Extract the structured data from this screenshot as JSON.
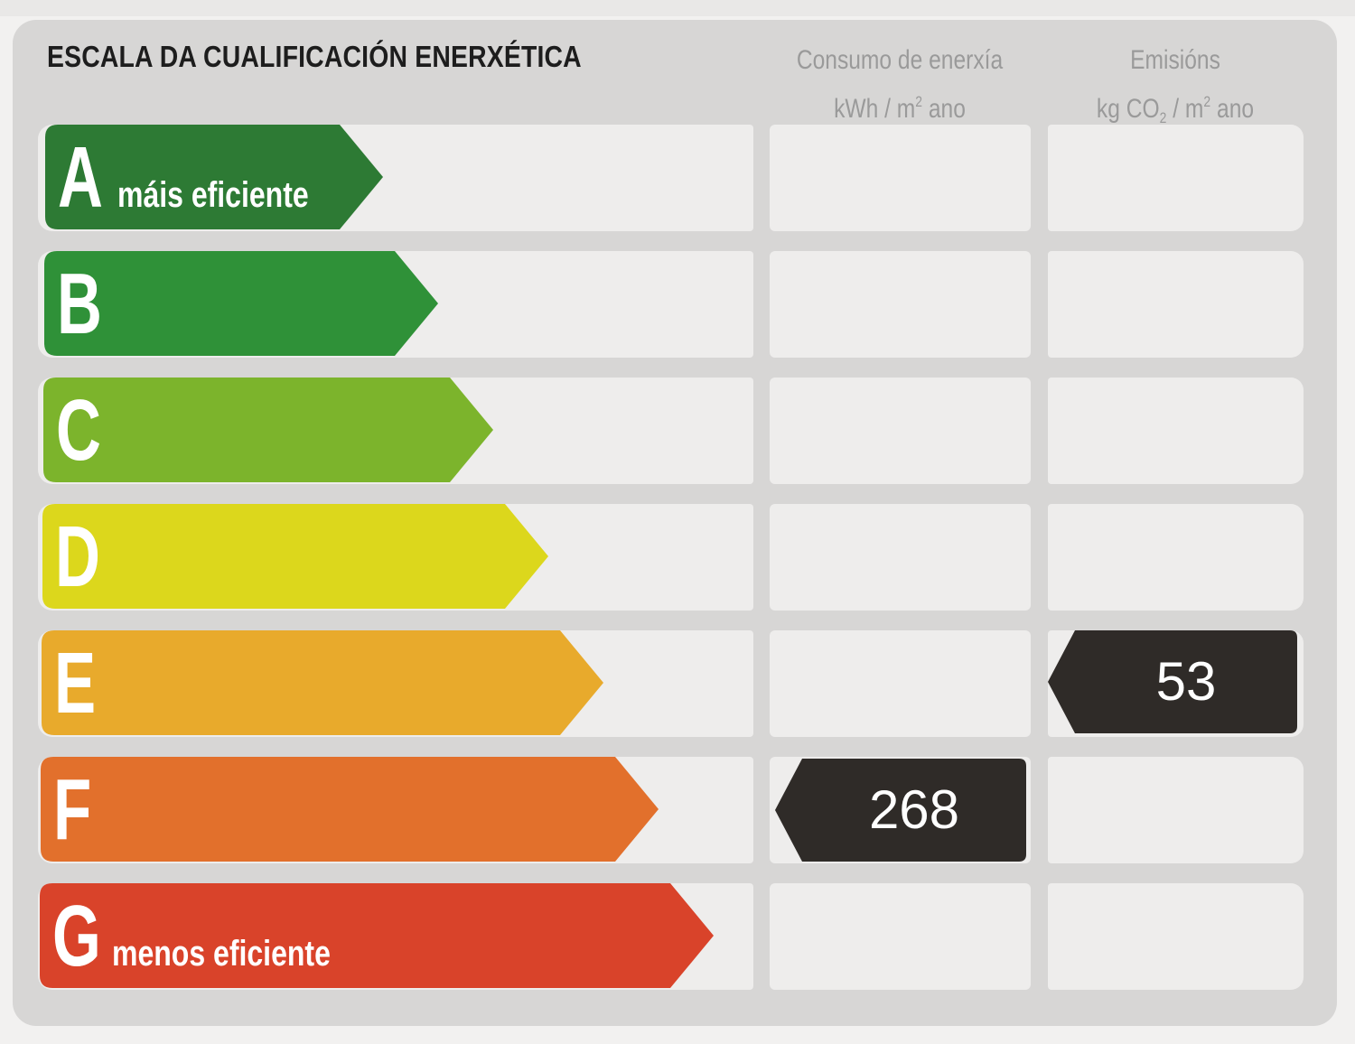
{
  "title": "ESCALA DA CUALIFICACIÓN ENERXÉTICA",
  "columns": {
    "consumo": {
      "line1": "Consumo de enerxía",
      "line2_prefix": "kWh / m",
      "line2_sup": "2",
      "line2_suffix": " ano"
    },
    "emisions": {
      "line1": "Emisións",
      "line2_prefix": "kg CO",
      "line2_sub": "2",
      "line2_mid": " / m",
      "line2_sup": "2",
      "line2_suffix": " ano"
    }
  },
  "ratings": [
    {
      "letter": "A",
      "tag": "máis eficiente",
      "color": "#2d7a34"
    },
    {
      "letter": "B",
      "tag": "",
      "color": "#2f9138"
    },
    {
      "letter": "C",
      "tag": "",
      "color": "#7cb42c"
    },
    {
      "letter": "D",
      "tag": "",
      "color": "#dcd71c"
    },
    {
      "letter": "E",
      "tag": "",
      "color": "#e8aa2c"
    },
    {
      "letter": "F",
      "tag": "",
      "color": "#e2702c"
    },
    {
      "letter": "G",
      "tag": "menos eficiente",
      "color": "#d9432a"
    }
  ],
  "results": {
    "consumo": {
      "value": "268",
      "rating": "F"
    },
    "emisions": {
      "value": "53",
      "rating": "E"
    }
  },
  "badge_color": "#2f2b28"
}
